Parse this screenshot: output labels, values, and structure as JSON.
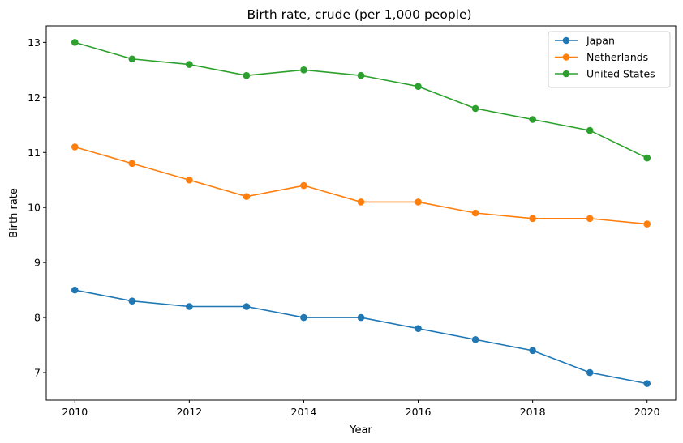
{
  "chart_data": {
    "type": "line",
    "title": "Birth rate, crude (per 1,000 people)",
    "xlabel": "Year",
    "ylabel": "Birth rate",
    "x": [
      2010,
      2011,
      2012,
      2013,
      2014,
      2015,
      2016,
      2017,
      2018,
      2019,
      2020
    ],
    "xlim": [
      2009.5,
      2020.5
    ],
    "ylim": [
      6.5,
      13.3
    ],
    "xticks": [
      2010,
      2012,
      2014,
      2016,
      2018,
      2020
    ],
    "yticks": [
      7,
      8,
      9,
      10,
      11,
      12,
      13
    ],
    "grid": false,
    "legend_position": "top-right",
    "series": [
      {
        "name": "Japan",
        "color": "#1f77b4",
        "values": [
          8.5,
          8.3,
          8.2,
          8.2,
          8.0,
          8.0,
          7.8,
          7.6,
          7.4,
          7.0,
          6.8
        ]
      },
      {
        "name": "Netherlands",
        "color": "#ff7f0e",
        "values": [
          11.1,
          10.8,
          10.5,
          10.2,
          10.4,
          10.1,
          10.1,
          9.9,
          9.8,
          9.8,
          9.7
        ]
      },
      {
        "name": "United States",
        "color": "#2ca02c",
        "values": [
          13.0,
          12.7,
          12.6,
          12.4,
          12.5,
          12.4,
          12.2,
          11.8,
          11.6,
          11.4,
          10.9
        ]
      }
    ]
  }
}
